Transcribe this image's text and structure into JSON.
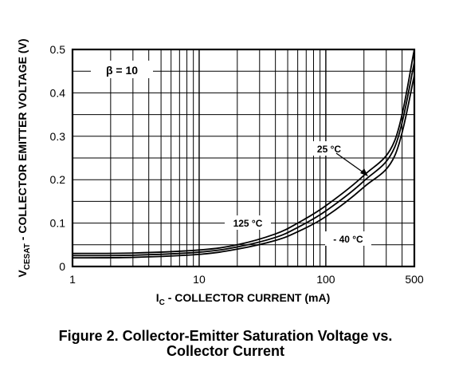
{
  "caption": {
    "line1": "Figure 2. Collector-Emitter Saturation Voltage vs.",
    "line2": "Collector Current"
  },
  "chart_data": {
    "type": "line",
    "x_scale": "log",
    "xlim": [
      1,
      500
    ],
    "ylim": [
      0,
      0.5
    ],
    "x_ticks": [
      {
        "value": 1,
        "label": "1"
      },
      {
        "value": 10,
        "label": "10"
      },
      {
        "value": 100,
        "label": "100"
      },
      {
        "value": 500,
        "label": "500"
      }
    ],
    "y_ticks": [
      {
        "value": 0,
        "label": "0"
      },
      {
        "value": 0.1,
        "label": "0.1"
      },
      {
        "value": 0.2,
        "label": "0.2"
      },
      {
        "value": 0.3,
        "label": "0.3"
      },
      {
        "value": 0.4,
        "label": "0.4"
      },
      {
        "value": 0.5,
        "label": "0.5"
      }
    ],
    "x_minor_grid": [
      2,
      3,
      4,
      5,
      6,
      7,
      8,
      9,
      20,
      30,
      40,
      50,
      60,
      70,
      80,
      90,
      200,
      300,
      400
    ],
    "y_grid_step": 0.05,
    "grid": true,
    "xlabel": {
      "main": "I",
      "sub": "C",
      "rest": " - COLLECTOR CURRENT  (mA)"
    },
    "ylabel": {
      "main": "V",
      "sub": "CESAT",
      "rest": " - COLLECTOR EMITTER VOLTAGE (V)"
    },
    "annotations": {
      "beta": "β = 10",
      "t25": "25 °C",
      "t125": "125 °C",
      "tm40": "- 40 °C"
    },
    "series": [
      {
        "name": "125 °C",
        "x": [
          1,
          3,
          10,
          20,
          40,
          60,
          100,
          200,
          350,
          500
        ],
        "y": [
          0.03,
          0.031,
          0.038,
          0.05,
          0.075,
          0.1,
          0.14,
          0.21,
          0.29,
          0.5
        ]
      },
      {
        "name": "25 °C",
        "x": [
          1,
          3,
          10,
          20,
          40,
          60,
          100,
          200,
          350,
          500
        ],
        "y": [
          0.025,
          0.026,
          0.033,
          0.045,
          0.067,
          0.09,
          0.128,
          0.197,
          0.275,
          0.47
        ]
      },
      {
        "name": "- 40 °C",
        "x": [
          1,
          3,
          10,
          20,
          40,
          60,
          100,
          200,
          350,
          500
        ],
        "y": [
          0.02,
          0.021,
          0.028,
          0.04,
          0.06,
          0.08,
          0.115,
          0.183,
          0.255,
          0.44
        ]
      }
    ]
  }
}
